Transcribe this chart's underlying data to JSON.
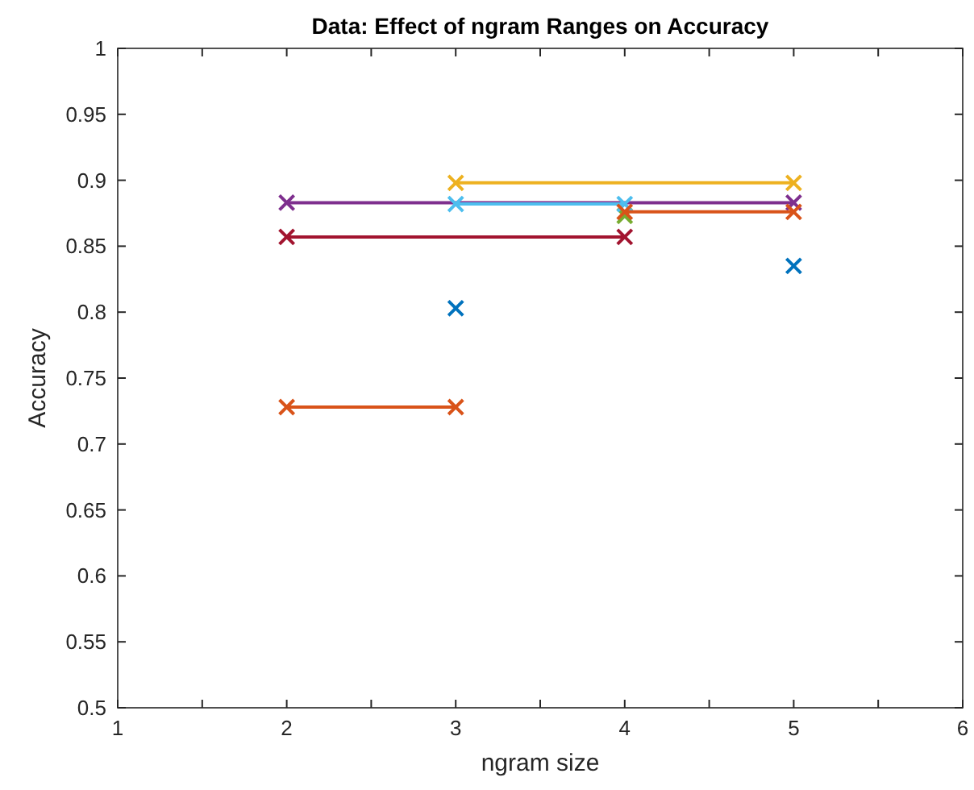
{
  "chart_data": {
    "type": "line",
    "title": "Data: Effect of ngram Ranges on Accuracy",
    "xlabel": "ngram size",
    "ylabel": "Accuracy",
    "marker": "cross",
    "line_style": "solid",
    "grid": false,
    "xlim": [
      1,
      6
    ],
    "xticks": [
      1,
      {
        "value": 1.5,
        "label": null
      },
      2,
      {
        "value": 2.5,
        "label": null
      },
      3,
      {
        "value": 3.5,
        "label": null
      },
      4,
      {
        "value": 4.5,
        "label": null
      },
      5,
      {
        "value": 5.5,
        "label": null
      },
      6
    ],
    "ylim": [
      0.5,
      1
    ],
    "yticks": [
      0.5,
      0.55,
      0.6,
      0.65,
      0.7,
      0.75,
      0.8,
      0.85,
      0.9,
      0.95,
      1
    ],
    "series": [
      {
        "type": "scatter",
        "color": "#0072bd",
        "x": [
          3
        ],
        "values": [
          0.803
        ]
      },
      {
        "color": "#d95319",
        "x": [
          2,
          3
        ],
        "values": [
          0.728,
          0.728
        ]
      },
      {
        "color": "#edb120",
        "x": [
          3,
          5
        ],
        "values": [
          0.898,
          0.898
        ]
      },
      {
        "color": "#7e2f8e",
        "x": [
          2,
          5
        ],
        "values": [
          0.883,
          0.883
        ]
      },
      {
        "type": "scatter",
        "color": "#77ac30",
        "x": [
          4
        ],
        "values": [
          0.873
        ]
      },
      {
        "color": "#4dbeee",
        "x": [
          3,
          4
        ],
        "values": [
          0.882,
          0.882
        ]
      },
      {
        "color": "#a2142f",
        "x": [
          2,
          4
        ],
        "values": [
          0.857,
          0.857
        ]
      },
      {
        "type": "scatter",
        "color": "#0072bd",
        "x": [
          5
        ],
        "values": [
          0.835
        ]
      },
      {
        "color": "#d95319",
        "x": [
          4,
          5
        ],
        "values": [
          0.876,
          0.876
        ]
      }
    ]
  }
}
